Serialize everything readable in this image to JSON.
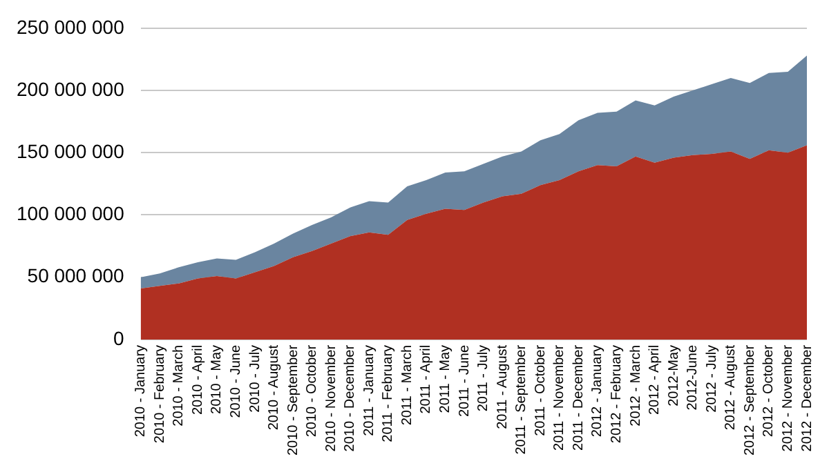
{
  "chart_data": {
    "type": "area",
    "stacked": true,
    "grid": "y",
    "legend": false,
    "categories": [
      "2010 - January",
      "2010 - February",
      "2010 - March",
      "2010 - April",
      "2010 - May",
      "2010 - June",
      "2010 - July",
      "2010 - August",
      "2010 - September",
      "2010 - October",
      "2010 - November",
      "2010 - December",
      "2011 - January",
      "2011 - February",
      "2011 - March",
      "2011 - April",
      "2011 - May",
      "2011 - June",
      "2011 - July",
      "2011 - August",
      "2011 - September",
      "2011 - October",
      "2011 - November",
      "2011 - December",
      "2012 - January",
      "2012 - February",
      "2012 - March",
      "2012 - April",
      "2012-May",
      "2012-June",
      "2012 - July",
      "2012 - August",
      "2012 - September",
      "2012 - October",
      "2012 - November",
      "2012 - December"
    ],
    "series": [
      {
        "color": "#b03022",
        "values": [
          41000000,
          43000000,
          45000000,
          49000000,
          51000000,
          49000000,
          54000000,
          59000000,
          66000000,
          71000000,
          77000000,
          83000000,
          86000000,
          84000000,
          96000000,
          101000000,
          105000000,
          104000000,
          110000000,
          115000000,
          117000000,
          124000000,
          128000000,
          135000000,
          140000000,
          139000000,
          147000000,
          142000000,
          146000000,
          148000000,
          149000000,
          151000000,
          145000000,
          152000000,
          150000000,
          156000000
        ]
      },
      {
        "color": "#6a85a0",
        "values": [
          9000000,
          10000000,
          13000000,
          13000000,
          14000000,
          15000000,
          16000000,
          18000000,
          19000000,
          21000000,
          21000000,
          23000000,
          25000000,
          26000000,
          27000000,
          27000000,
          29000000,
          31000000,
          31000000,
          32000000,
          34000000,
          36000000,
          37000000,
          41000000,
          42000000,
          44000000,
          45000000,
          46000000,
          49000000,
          52000000,
          56000000,
          59000000,
          61000000,
          62000000,
          65000000,
          72000000
        ]
      }
    ],
    "ylim": [
      0,
      250000000
    ],
    "yticks": [
      0,
      {
        "value": 50000000,
        "label": "50 000 000"
      },
      {
        "value": 100000000,
        "label": "100 000 000"
      },
      {
        "value": 150000000,
        "label": "150 000 000"
      },
      {
        "value": 200000000,
        "label": "200 000 000"
      },
      {
        "value": 250000000,
        "label": "250 000 000"
      }
    ]
  }
}
